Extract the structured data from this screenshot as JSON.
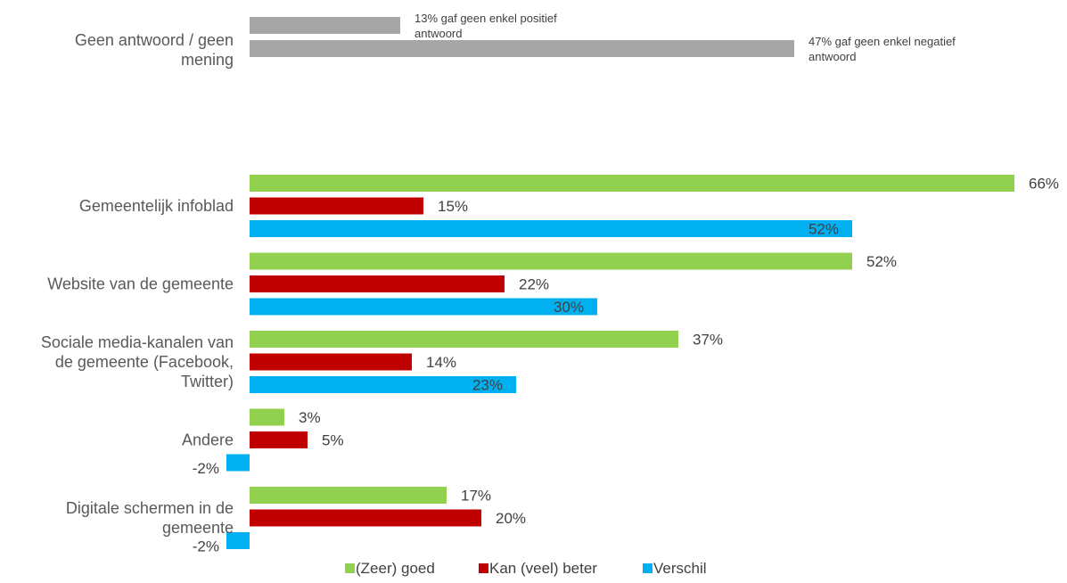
{
  "chart_data": {
    "type": "bar",
    "orientation": "horizontal",
    "grid": false,
    "legend_position": "bottom",
    "colors": {
      "green": "#92d050",
      "red": "#c00000",
      "blue": "#00b0f0",
      "gray": "#a6a6a6"
    },
    "special_category": {
      "label_lines": [
        "Geen antwoord / geen",
        "mening"
      ],
      "bars": [
        {
          "value": 13,
          "note_lines": [
            "13% gaf geen enkel positief",
            "antwoord"
          ]
        },
        {
          "value": 47,
          "note_lines": [
            "47% gaf geen enkel negatief",
            "antwoord"
          ]
        }
      ]
    },
    "series": [
      {
        "name": "(Zeer) goed",
        "color": "#92d050"
      },
      {
        "name": "Kan (veel) beter",
        "color": "#c00000"
      },
      {
        "name": "Verschil",
        "color": "#00b0f0"
      }
    ],
    "categories": [
      {
        "label_lines": [
          "Gemeentelijk infoblad"
        ],
        "values": [
          66,
          15,
          52
        ],
        "labels": [
          "66%",
          "15%",
          "52%"
        ]
      },
      {
        "label_lines": [
          "Website van de gemeente"
        ],
        "values": [
          52,
          22,
          30
        ],
        "labels": [
          "52%",
          "22%",
          "30%"
        ]
      },
      {
        "label_lines": [
          "Sociale media-kanalen van",
          "de gemeente (Facebook,",
          "Twitter)"
        ],
        "values": [
          37,
          14,
          23
        ],
        "labels": [
          "37%",
          "14%",
          "23%"
        ]
      },
      {
        "label_lines": [
          "Andere"
        ],
        "values": [
          3,
          5,
          -2
        ],
        "labels": [
          "3%",
          "5%",
          "-2%"
        ]
      },
      {
        "label_lines": [
          "Digitale schermen in de",
          "gemeente"
        ],
        "values": [
          17,
          20,
          -2
        ],
        "labels": [
          "17%",
          "20%",
          "-2%"
        ]
      }
    ]
  }
}
